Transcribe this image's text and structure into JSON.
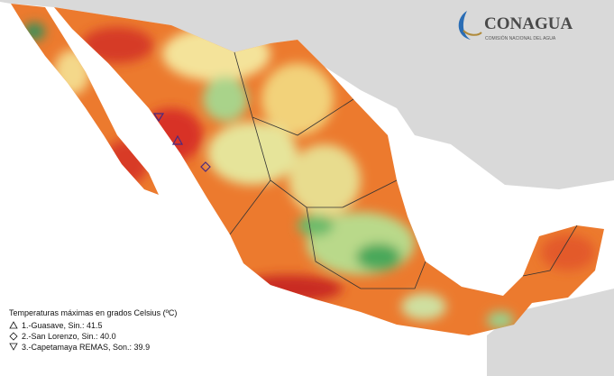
{
  "logo": {
    "name": "CONAGUA",
    "subtitle": "COMISIÓN NACIONAL DEL AGUA"
  },
  "legend": {
    "title": "Temperaturas máximas en grados Celsius (ºC)",
    "entries": [
      "1.-Guasave, Sin.: 41.5",
      "2.-San Lorenzo, Sin.: 40.0",
      "3.-Capetamaya REMAS, Son.: 39.9"
    ]
  }
}
